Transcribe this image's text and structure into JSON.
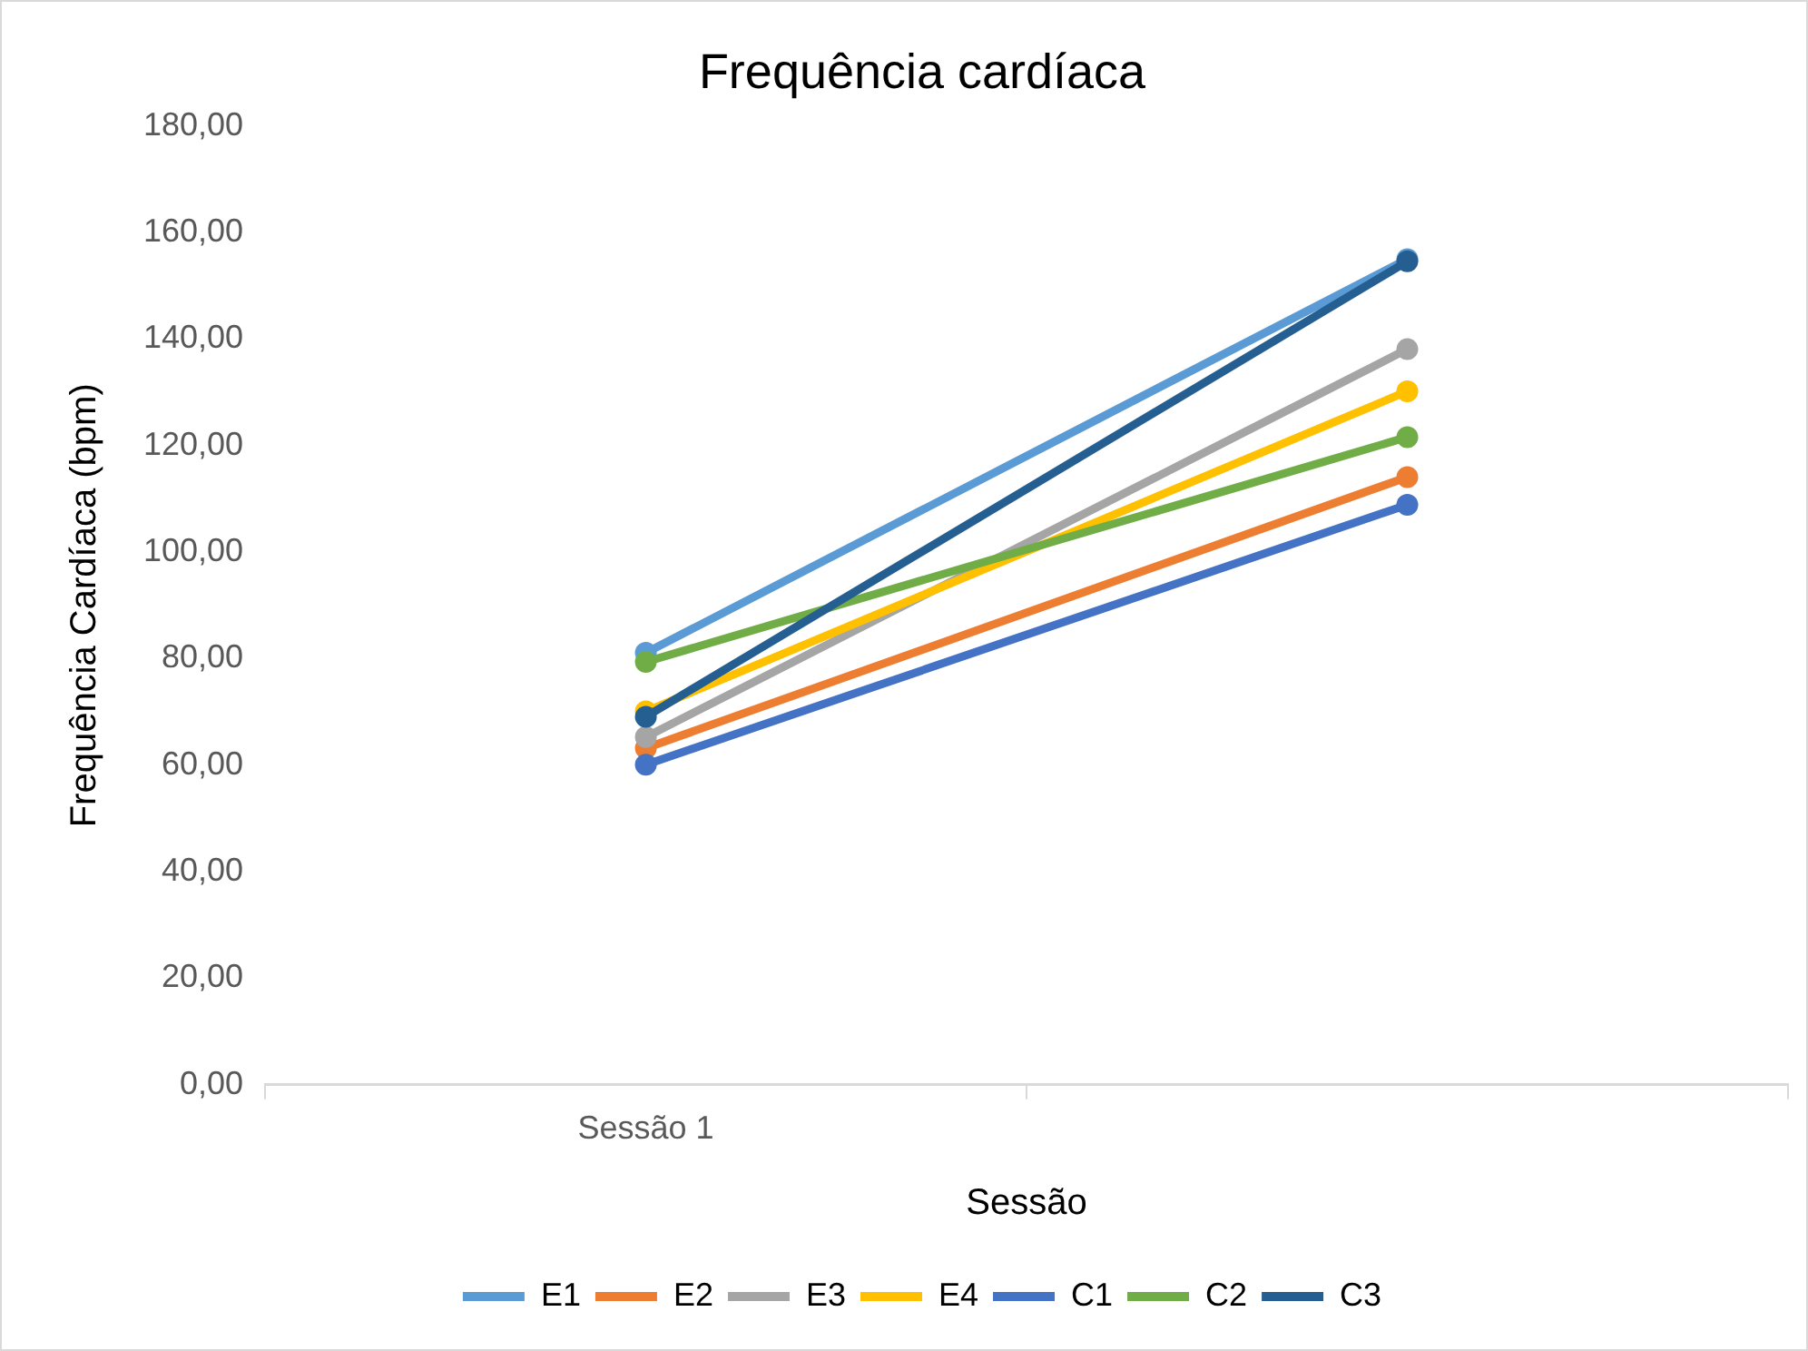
{
  "chart_data": {
    "type": "line",
    "title": "Frequência cardíaca",
    "xlabel": "Sessão",
    "ylabel": "Frequência Cardíaca (bpm)",
    "categories": [
      "Sessão 1",
      null
    ],
    "series": [
      {
        "name": "E1",
        "color": "#5b9bd5",
        "values": [
          81.1,
          155.0
        ]
      },
      {
        "name": "E2",
        "color": "#ed7d31",
        "values": [
          63.2,
          114.1
        ]
      },
      {
        "name": "E3",
        "color": "#a5a5a5",
        "values": [
          65.3,
          138.1
        ]
      },
      {
        "name": "E4",
        "color": "#ffc000",
        "values": [
          70.1,
          130.2
        ]
      },
      {
        "name": "C1",
        "color": "#4472c4",
        "values": [
          60.1,
          108.9
        ]
      },
      {
        "name": "C2",
        "color": "#70ad47",
        "values": [
          79.4,
          121.6
        ]
      },
      {
        "name": "C3",
        "color": "#255e91",
        "values": [
          69.1,
          154.6
        ]
      }
    ],
    "ylim": [
      0,
      180
    ],
    "yticks": [
      {
        "value": 0,
        "label": "0,00"
      },
      {
        "value": 20,
        "label": "20,00"
      },
      {
        "value": 40,
        "label": "40,00"
      },
      {
        "value": 60,
        "label": "60,00"
      },
      {
        "value": 80,
        "label": "80,00"
      },
      {
        "value": 100,
        "label": "100,00"
      },
      {
        "value": 120,
        "label": "120,00"
      },
      {
        "value": 140,
        "label": "140,00"
      },
      {
        "value": 160,
        "label": "160,00"
      },
      {
        "value": 180,
        "label": "180,00"
      }
    ],
    "grid": false,
    "legend": "bottom",
    "marker": "circle",
    "line_style": "solid"
  }
}
